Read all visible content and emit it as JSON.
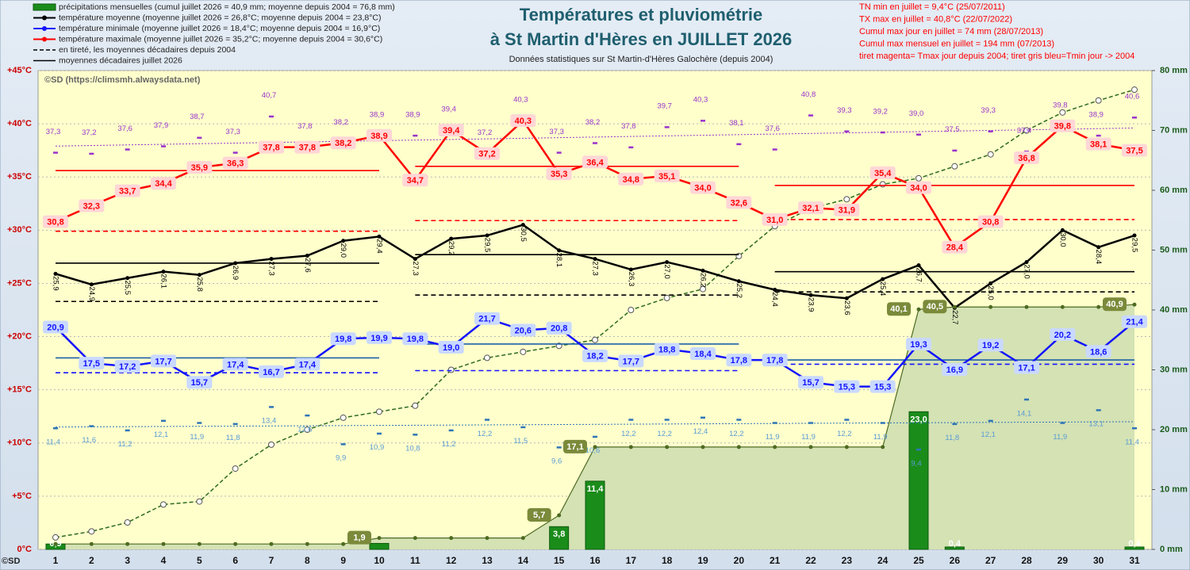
{
  "chart_data": {
    "type": "line",
    "title": [
      "Températures et  pluviométrie",
      "à St Martin d'Hères en JUILLET 2026"
    ],
    "subtitle": "Données statistiques sur St Martin-d'Hères Galochère  (depuis 2004)",
    "records": [
      "TN min en juillet = 9,4°C (25/07/2011)",
      "TX max en juillet = 40,8°C (22/07/2022)",
      "Cumul max jour en juillet = 74 mm (28/07/2013)",
      "Cumul max mensuel en juillet = 194 mm (07/2013)",
      "tiret magenta= Tmax jour depuis 2004; tiret gris bleu=Tmin jour -> 2004"
    ],
    "records_color": "#ff0000",
    "credit": "©SD (https://climsmh.alwaysdata.net)",
    "credit_short": "©SD",
    "x": [
      1,
      2,
      3,
      4,
      5,
      6,
      7,
      8,
      9,
      10,
      11,
      12,
      13,
      14,
      15,
      16,
      17,
      18,
      19,
      20,
      21,
      22,
      23,
      24,
      25,
      26,
      27,
      28,
      29,
      30,
      31
    ],
    "ylim": [
      0,
      45
    ],
    "yticks": [
      {
        "value": 0,
        "label": "0°C"
      },
      {
        "value": 5,
        "label": "+5°C"
      },
      {
        "value": 10,
        "label": "+10°C"
      },
      {
        "value": 15,
        "label": "+15°C"
      },
      {
        "value": 20,
        "label": "+20°C"
      },
      {
        "value": 25,
        "label": "+25°C"
      },
      {
        "value": 30,
        "label": "+30°C"
      },
      {
        "value": 35,
        "label": "+35°C"
      },
      {
        "value": 40,
        "label": "+40°C"
      },
      {
        "value": 45,
        "label": "+45°C"
      }
    ],
    "y2lim": [
      0,
      80
    ],
    "y2ticks": [
      {
        "value": 0,
        "label": "0 mm"
      },
      {
        "value": 10,
        "label": "10 mm"
      },
      {
        "value": 20,
        "label": "20 mm"
      },
      {
        "value": 30,
        "label": "30 mm"
      },
      {
        "value": 40,
        "label": "40 mm"
      },
      {
        "value": 50,
        "label": "50 mm"
      },
      {
        "value": 60,
        "label": "60 mm"
      },
      {
        "value": 70,
        "label": "70 mm"
      },
      {
        "value": 80,
        "label": "80 mm"
      }
    ],
    "grid": true,
    "series": [
      {
        "name": "précipitations mensuelles (cumul juillet 2026 = 40,9 mm; moyenne depuis 2004 = 76,8 mm)",
        "kind": "bar",
        "axis": "y2",
        "color": "#1a8c1a",
        "values": [
          0.9,
          0,
          0,
          0,
          0,
          0,
          0,
          0,
          0,
          1.0,
          0,
          0,
          0,
          0,
          3.8,
          11.4,
          0,
          0,
          0,
          0,
          0,
          0,
          0,
          0,
          23.0,
          0.4,
          0,
          0,
          0,
          0,
          0.4
        ],
        "value_labels": [
          "0,9",
          null,
          null,
          null,
          null,
          null,
          null,
          null,
          null,
          null,
          null,
          null,
          null,
          null,
          "3,8",
          "11,4",
          null,
          null,
          null,
          null,
          null,
          null,
          null,
          null,
          "23,0",
          "0,4",
          null,
          null,
          null,
          null,
          "0,4"
        ]
      },
      {
        "name": "température moyenne (moyenne juillet 2026 = 26,8°C; moyenne depuis 2004 = 23,8°C)",
        "kind": "line",
        "color": "#000000",
        "label_style": "rotated",
        "values": [
          25.9,
          24.9,
          25.5,
          26.1,
          25.8,
          26.9,
          27.3,
          27.6,
          29.0,
          29.4,
          27.3,
          29.2,
          29.5,
          30.5,
          28.1,
          27.3,
          26.3,
          27.0,
          26.2,
          25.2,
          24.4,
          23.9,
          23.6,
          25.4,
          26.7,
          22.7,
          25.0,
          27.0,
          30.0,
          28.4,
          29.5
        ],
        "value_labels": [
          "25,9",
          "24,9",
          "25,5",
          "26,1",
          "25,8",
          "26,9",
          "27,3",
          "27,6",
          "29,0",
          "29,4",
          "27,3",
          "29,2",
          "29,5",
          "30,5",
          "28,1",
          "27,3",
          "26,3",
          "27,0",
          "26,2",
          "25,2",
          "24,4",
          "23,9",
          "23,6",
          "25,4",
          "26,7",
          "22,7",
          "25,0",
          "27,0",
          "30,0",
          "28,4",
          "29,5"
        ]
      },
      {
        "name": "température minimale (moyenne juillet 2026 = 18,4°C; moyenne depuis 2004 = 16,9°C)",
        "kind": "line",
        "color": "#1414ff",
        "label_bg": "#c9d9ff",
        "values": [
          20.9,
          17.5,
          17.2,
          17.7,
          15.7,
          17.4,
          16.7,
          17.4,
          19.8,
          19.9,
          19.8,
          19.0,
          21.7,
          20.6,
          20.8,
          18.2,
          17.7,
          18.8,
          18.4,
          17.8,
          17.8,
          15.7,
          15.3,
          15.3,
          19.3,
          16.9,
          19.2,
          17.1,
          20.2,
          18.6,
          21.4
        ],
        "value_labels": [
          "20,9",
          "17,5",
          "17,2",
          "17,7",
          "15,7",
          "17,4",
          "16,7",
          "17,4",
          "19,8",
          "19,9",
          "19,8",
          "19,0",
          "21,7",
          "20,6",
          "20,8",
          "18,2",
          "17,7",
          "18,8",
          "18,4",
          "17,8",
          "17,8",
          "15,7",
          "15,3",
          "15,3",
          "19,3",
          "16,9",
          "19,2",
          "17,1",
          "20,2",
          "18,6",
          "21,4"
        ]
      },
      {
        "name": "température maximale (moyenne juillet 2026 = 35,2°C; moyenne depuis 2004 = 30,6°C)",
        "kind": "line",
        "color": "#ff0000",
        "label_bg": "#ffd6d6",
        "values": [
          30.8,
          32.3,
          33.7,
          34.4,
          35.9,
          36.3,
          37.8,
          37.8,
          38.2,
          38.9,
          34.7,
          39.4,
          37.2,
          40.3,
          35.3,
          36.4,
          34.8,
          35.1,
          34.0,
          32.6,
          31.0,
          32.1,
          31.9,
          35.4,
          34.0,
          28.4,
          30.8,
          36.8,
          39.8,
          38.1,
          37.5
        ],
        "value_labels": [
          "30,8",
          "32,3",
          "33,7",
          "34,4",
          "35,9",
          "36,3",
          "37,8",
          "37,8",
          "38,2",
          "38,9",
          "34,7",
          "39,4",
          "37,2",
          "40,3",
          "35,3",
          "36,4",
          "34,8",
          "35,1",
          "34,0",
          "32,6",
          "31,0",
          "32,1",
          "31,9",
          "35,4",
          "34,0",
          "28,4",
          "30,8",
          "36,8",
          "39,8",
          "38,1",
          "37,5"
        ]
      },
      {
        "kind": "record",
        "color": "#9933cc",
        "label_side": "above",
        "values": [
          37.3,
          37.2,
          37.6,
          37.9,
          38.7,
          37.3,
          40.7,
          37.8,
          38.2,
          38.9,
          38.9,
          39.4,
          37.2,
          40.3,
          37.3,
          38.2,
          37.8,
          39.7,
          40.3,
          38.1,
          37.6,
          40.8,
          39.3,
          39.2,
          39.0,
          37.5,
          39.3,
          37.4,
          39.8,
          38.9,
          40.6
        ],
        "value_labels": [
          "37,3",
          "37,2",
          "37,6",
          "37,9",
          "38,7",
          "37,3",
          "40,7",
          "37,8",
          "38,2",
          "38,9",
          "38,9",
          "39,4",
          "37,2",
          "40,3",
          "37,3",
          "38,2",
          "37,8",
          "39,7",
          "40,3",
          "38,1",
          "37,6",
          "40,8",
          "39,3",
          "39,2",
          "39,0",
          "37,5",
          "39,3",
          "37,4",
          "39,8",
          "38,9",
          "40,6"
        ]
      },
      {
        "kind": "record",
        "color": "#2e75b6",
        "label_color": "#5b9bd5",
        "label_side": "below",
        "values": [
          11.4,
          11.6,
          11.2,
          12.1,
          11.9,
          11.8,
          13.4,
          12.6,
          9.9,
          10.9,
          10.8,
          11.2,
          12.2,
          11.5,
          9.6,
          10.6,
          12.2,
          12.2,
          12.4,
          12.2,
          11.9,
          11.9,
          12.2,
          11.9,
          9.4,
          11.8,
          12.1,
          14.1,
          11.9,
          13.1,
          11.4
        ],
        "value_labels": [
          "11,4",
          "11,6",
          "11,2",
          "12,1",
          "11,9",
          "11,8",
          "13,4",
          "12,6",
          "9,9",
          "10,9",
          "10,8",
          "11,2",
          "12,2",
          "11,5",
          "9,6",
          "10,6",
          "12,2",
          "12,2",
          "12,4",
          "12,2",
          "11,9",
          "11,9",
          "12,2",
          "11,9",
          "9,4",
          "11,8",
          "12,1",
          "14,1",
          "11,9",
          "13,1",
          "11,4"
        ]
      },
      {
        "kind": "area",
        "axis": "y2",
        "color": "#d4e2b4",
        "stroke": "#4e6b22",
        "label_bg": "#7a8a3a",
        "values": [
          0.9,
          0.9,
          0.9,
          0.9,
          0.9,
          0.9,
          0.9,
          0.9,
          0.9,
          1.9,
          1.9,
          1.9,
          1.9,
          1.9,
          5.7,
          17.1,
          17.1,
          17.1,
          17.1,
          17.1,
          17.1,
          17.1,
          17.1,
          17.1,
          40.1,
          40.5,
          40.5,
          40.5,
          40.5,
          40.5,
          40.9
        ],
        "value_labels": [
          null,
          null,
          null,
          null,
          null,
          null,
          null,
          null,
          null,
          "1,9",
          null,
          null,
          null,
          null,
          "5,7",
          "17,1",
          null,
          null,
          null,
          null,
          null,
          null,
          null,
          null,
          "40,1",
          "40,5",
          null,
          null,
          null,
          null,
          "40,9"
        ]
      },
      {
        "kind": "dashed",
        "axis": "y2",
        "color": "#2e6b1e",
        "values": [
          2,
          3,
          4.5,
          7.5,
          8,
          13.5,
          17.5,
          20,
          22,
          23,
          24,
          30,
          32,
          33,
          34,
          35,
          40,
          42,
          43.5,
          49,
          54,
          57,
          58.5,
          61,
          62,
          64,
          66,
          70,
          73,
          75,
          76.8
        ]
      }
    ],
    "decadal": [
      {
        "name": "en tireté, les moyennes décadaires depuis 2004",
        "style": "dashed",
        "lines": [
          {
            "color": "#ff0000",
            "values": [
              29.9,
              30.9,
              31.0
            ]
          },
          {
            "color": "#000000",
            "values": [
              23.3,
              23.9,
              24.2
            ]
          },
          {
            "color": "#1414ff",
            "values": [
              16.6,
              16.8,
              17.4
            ]
          }
        ]
      },
      {
        "name": "moyennes décadaires juillet 2026",
        "style": "solid",
        "lines": [
          {
            "color": "#ff0000",
            "values": [
              35.6,
              36.0,
              34.2
            ]
          },
          {
            "color": "#000000",
            "values": [
              26.9,
              27.7,
              26.1
            ]
          },
          {
            "color": "#1f5faa",
            "values": [
              18.0,
              19.3,
              17.8
            ]
          }
        ]
      }
    ],
    "record_trends": [
      {
        "color": "#9933cc",
        "values": [
          37.9,
          39.6
        ]
      },
      {
        "color": "#2e75b6",
        "values": [
          11.5,
          12.0
        ]
      }
    ]
  }
}
